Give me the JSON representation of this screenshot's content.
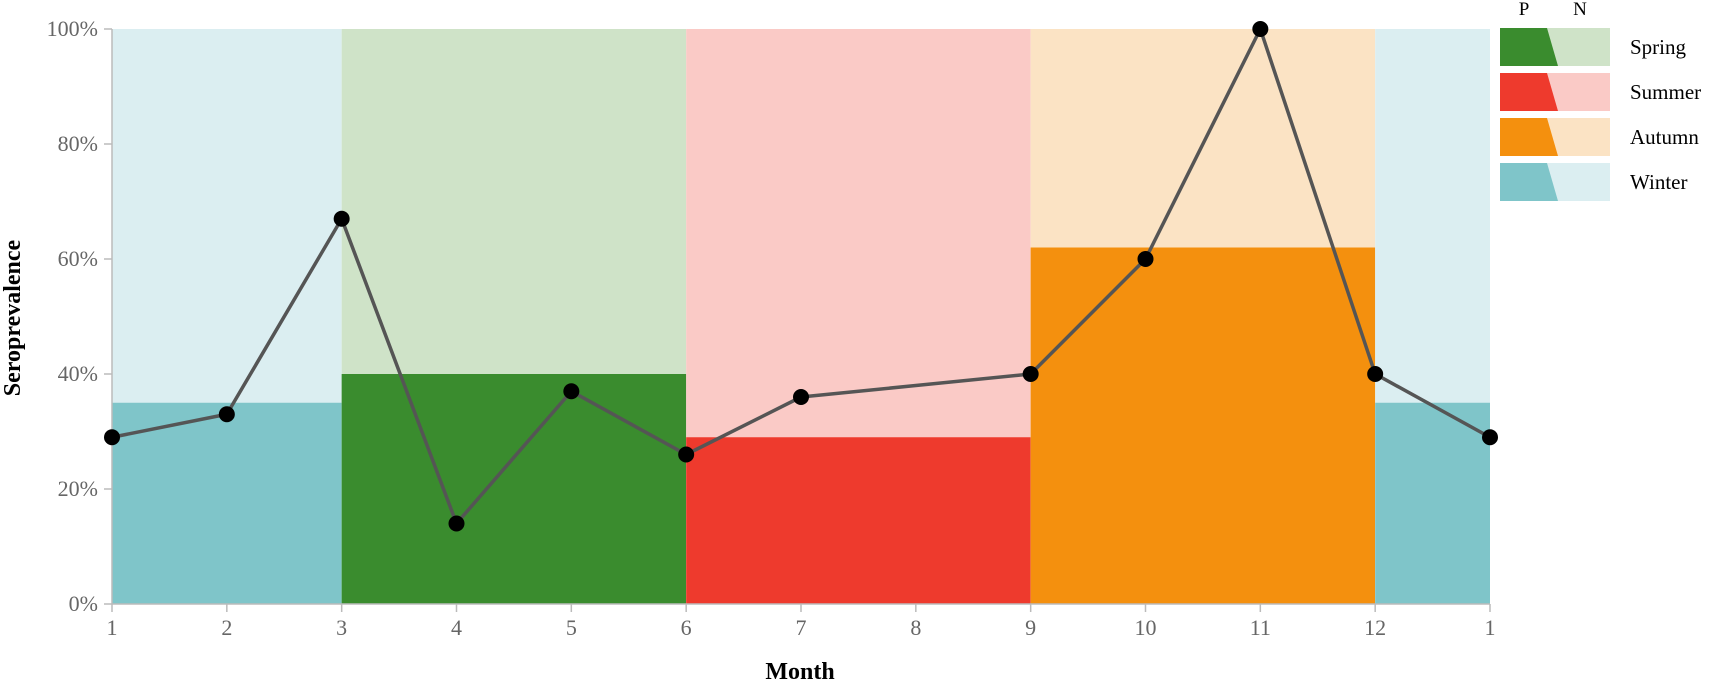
{
  "chart_data": {
    "type": "line",
    "xlabel": "Month",
    "ylabel": "Seroprevalence",
    "ylim": [
      0,
      100
    ],
    "y_ticks": [
      "0%",
      "20%",
      "40%",
      "60%",
      "80%",
      "100%"
    ],
    "x_ticks": [
      "1",
      "2",
      "3",
      "4",
      "5",
      "6",
      "7",
      "8",
      "9",
      "10",
      "11",
      "12",
      "1"
    ],
    "monthly": {
      "x": [
        1,
        2,
        3,
        4,
        5,
        6,
        7,
        8,
        9,
        10,
        11,
        12,
        13
      ],
      "values": [
        29,
        33,
        67,
        14,
        37,
        26,
        36,
        38,
        40,
        60,
        100,
        40,
        29
      ],
      "markers": [
        true,
        true,
        true,
        true,
        true,
        true,
        true,
        false,
        true,
        true,
        true,
        true,
        true
      ]
    },
    "seasons": [
      {
        "label": "Winter",
        "x_start": 1,
        "x_end": 3,
        "positive": 35,
        "color_p": "#7fc5c9",
        "color_n": "#dbeef1"
      },
      {
        "label": "Spring",
        "x_start": 3,
        "x_end": 6,
        "positive": 40,
        "color_p": "#3a8c2e",
        "color_n": "#cfe3c8"
      },
      {
        "label": "Summer",
        "x_start": 6,
        "x_end": 9,
        "positive": 29,
        "color_p": "#ee3a2d",
        "color_n": "#facac6"
      },
      {
        "label": "Autumn",
        "x_start": 9,
        "x_end": 12,
        "positive": 62,
        "color_p": "#f4900e",
        "color_n": "#fbe3c4"
      },
      {
        "label": "Winter",
        "x_start": 12,
        "x_end": 13,
        "positive": 35,
        "color_p": "#7fc5c9",
        "color_n": "#dbeef1"
      }
    ],
    "legend": {
      "header_p": "P",
      "header_n": "N",
      "placement": "top-right",
      "items": [
        {
          "label": "Spring",
          "color_p": "#3a8c2e",
          "color_n": "#cfe3c8"
        },
        {
          "label": "Summer",
          "color_p": "#ee3a2d",
          "color_n": "#facac6"
        },
        {
          "label": "Autumn",
          "color_p": "#f4900e",
          "color_n": "#fbe3c4"
        },
        {
          "label": "Winter",
          "color_p": "#7fc5c9",
          "color_n": "#dbeef1"
        }
      ]
    },
    "line_color": "#555555",
    "marker_color": "#000000",
    "grid": false
  }
}
